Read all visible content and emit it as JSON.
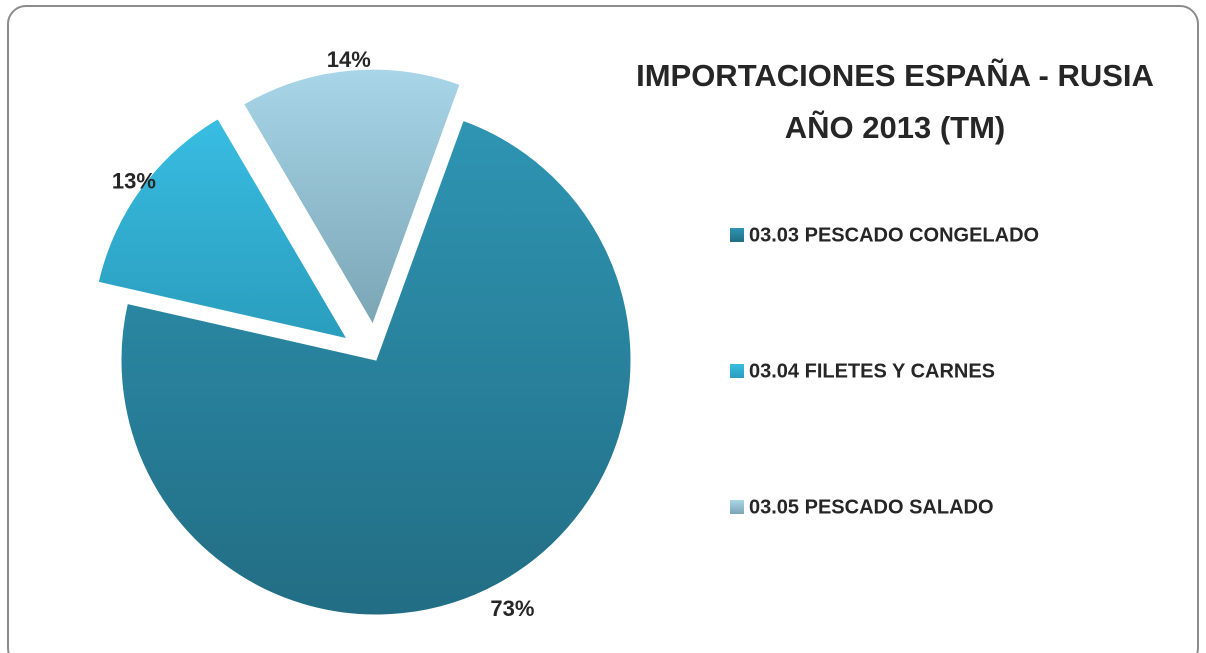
{
  "chart_data": {
    "type": "pie",
    "title": [
      "IMPORTACIONES ESPAÑA -  RUSIA",
      "AÑO 2013 (TM)"
    ],
    "categories": [
      "03.03 PESCADO CONGELADO",
      "03.04 FILETES Y CARNES",
      "03.05 PESCADO SALADO"
    ],
    "values": [
      73,
      13,
      14
    ],
    "value_labels": [
      "73%",
      "13%",
      "14%"
    ],
    "colors": [
      "#2b8aa6",
      "#33b0d3",
      "#9ccbdc"
    ],
    "legend": "right"
  }
}
